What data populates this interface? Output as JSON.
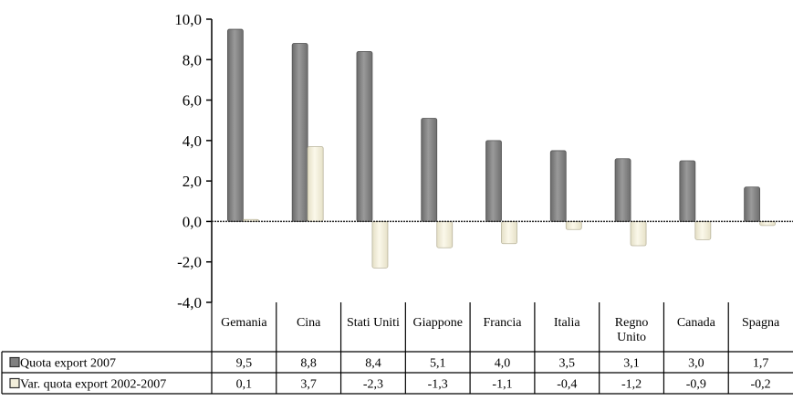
{
  "chart_data": {
    "type": "bar",
    "categories": [
      "Gemania",
      "Cina",
      "Stati Uniti",
      "Giappone",
      "Francia",
      "Italia",
      "Regno Unito",
      "Canada",
      "Spagna"
    ],
    "category_lines": [
      [
        "Gemania"
      ],
      [
        "Cina"
      ],
      [
        "Stati Uniti"
      ],
      [
        "Giappone"
      ],
      [
        "Francia"
      ],
      [
        "Italia"
      ],
      [
        "Regno",
        "Unito"
      ],
      [
        "Canada"
      ],
      [
        "Spagna"
      ]
    ],
    "series": [
      {
        "name": "Quota export 2007",
        "values": [
          9.5,
          8.8,
          8.4,
          5.1,
          4.0,
          3.5,
          3.1,
          3.0,
          1.7
        ],
        "labels": [
          "9,5",
          "8,8",
          "8,4",
          "5,1",
          "4,0",
          "3,5",
          "3,1",
          "3,0",
          "1,7"
        ],
        "color": "#808080"
      },
      {
        "name": "Var. quota export 2002-2007",
        "values": [
          0.1,
          3.7,
          -2.3,
          -1.3,
          -1.1,
          -0.4,
          -1.2,
          -0.9,
          -0.2
        ],
        "labels": [
          "0,1",
          "3,7",
          "-2,3",
          "-1,3",
          "-1,1",
          "-0,4",
          "-1,2",
          "-0,9",
          "-0,2"
        ],
        "color": "#f2eedb"
      }
    ],
    "ylim": [
      -4,
      10
    ],
    "yticks": [
      10,
      8,
      6,
      4,
      2,
      0,
      -2,
      -4
    ],
    "ytick_labels": [
      "10,0",
      "8,0",
      "6,0",
      "4,0",
      "2,0",
      "0,0",
      "-2,0",
      "-4,0"
    ],
    "grid": false,
    "legend": "data-table"
  }
}
